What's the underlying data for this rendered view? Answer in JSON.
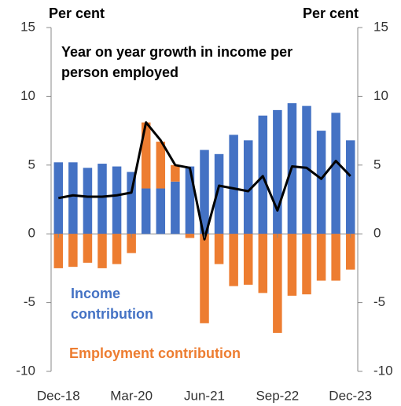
{
  "chart_data": {
    "type": "bar",
    "title": "Year on year growth in income per person employed",
    "y_label": "Per cent",
    "y2_label": "Per cent",
    "categories": [
      "Dec-18",
      null,
      null,
      null,
      null,
      "Mar-20",
      null,
      null,
      null,
      null,
      "Jun-21",
      null,
      null,
      null,
      null,
      "Sep-22",
      null,
      null,
      null,
      null,
      "Dec-23"
    ],
    "series": [
      {
        "name": "Income contribution",
        "color": "#4472c4",
        "kind": "bar",
        "values": [
          5.2,
          5.2,
          4.8,
          5.1,
          4.9,
          4.5,
          3.3,
          3.3,
          3.8,
          4.9,
          6.1,
          5.8,
          7.2,
          6.8,
          8.6,
          9.0,
          9.5,
          9.3,
          7.5,
          8.8,
          6.8
        ]
      },
      {
        "name": "Employment contribution",
        "color": "#ed7d31",
        "kind": "bar",
        "values": [
          -2.5,
          -2.4,
          -2.1,
          -2.5,
          -2.2,
          -1.4,
          4.8,
          3.4,
          1.2,
          -0.3,
          -6.5,
          -2.2,
          -3.8,
          -3.7,
          -4.3,
          -7.2,
          -4.5,
          -4.4,
          -3.4,
          -3.4,
          -2.6
        ]
      },
      {
        "color": "#000000",
        "kind": "line",
        "values": [
          2.6,
          2.8,
          2.7,
          2.7,
          2.8,
          3.0,
          8.1,
          6.8,
          5.0,
          4.8,
          -0.4,
          3.5,
          3.3,
          3.1,
          4.2,
          1.7,
          4.9,
          4.8,
          4.0,
          5.3,
          4.2
        ]
      }
    ],
    "ylim": [
      -10,
      15
    ],
    "yticks": [
      -10,
      -5,
      0,
      5,
      10,
      15
    ],
    "y2lim": [
      -10,
      15
    ],
    "y2ticks": [
      -10,
      -5,
      0,
      5,
      10,
      15
    ]
  }
}
